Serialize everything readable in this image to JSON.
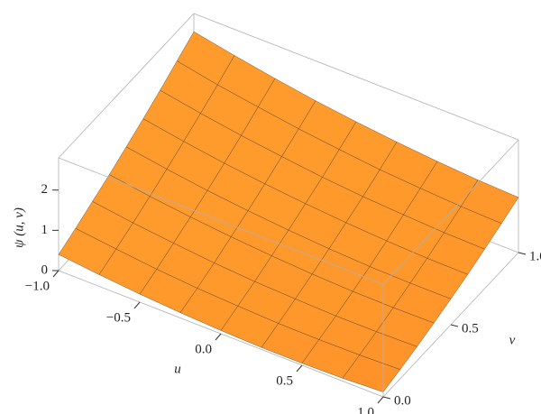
{
  "chart_data": {
    "type": "surface",
    "xlabel": "u",
    "ylabel": "v",
    "zlabel": "ψ (u, v)",
    "x": [
      -1,
      -0.75,
      -0.5,
      -0.25,
      0,
      0.25,
      0.5,
      0.75,
      1
    ],
    "y": [
      0,
      0.125,
      0.25,
      0.375,
      0.5,
      0.625,
      0.75,
      0.875,
      1
    ],
    "z": [
      [
        0.4,
        0.29,
        0.2,
        0.13,
        0.08,
        0.05,
        0.05,
        0.07,
        0.12
      ],
      [
        0.6,
        0.48,
        0.37,
        0.29,
        0.24,
        0.2,
        0.19,
        0.2,
        0.23
      ],
      [
        0.82,
        0.68,
        0.57,
        0.47,
        0.4,
        0.36,
        0.33,
        0.33,
        0.35
      ],
      [
        1.04,
        0.89,
        0.77,
        0.67,
        0.59,
        0.53,
        0.49,
        0.48,
        0.49
      ],
      [
        1.28,
        1.12,
        0.98,
        0.87,
        0.78,
        0.71,
        0.66,
        0.64,
        0.64
      ],
      [
        1.53,
        1.36,
        1.21,
        1.09,
        0.99,
        0.91,
        0.85,
        0.81,
        0.8
      ],
      [
        1.79,
        1.61,
        1.45,
        1.32,
        1.2,
        1.11,
        1.05,
        1.0,
        0.98
      ],
      [
        2.07,
        1.87,
        1.71,
        1.56,
        1.44,
        1.33,
        1.26,
        1.2,
        1.17
      ],
      [
        2.35,
        2.15,
        1.97,
        1.81,
        1.68,
        1.57,
        1.48,
        1.41,
        1.37
      ]
    ],
    "color": "#f28c28",
    "xlim": [
      -1,
      1
    ],
    "ylim": [
      0,
      1
    ],
    "zlim": [
      0,
      2.8
    ],
    "xticks": [
      {
        "value": -1,
        "label": "−1.0"
      },
      {
        "value": -0.5,
        "label": "−0.5"
      },
      {
        "value": 0,
        "label": "0.0"
      },
      0.5,
      {
        "value": 1,
        "label": "1.0"
      }
    ],
    "yticks": [
      {
        "value": 0,
        "label": "0.0"
      },
      0.5,
      {
        "value": 1,
        "label": "1.0"
      }
    ],
    "zticks": [
      0,
      1,
      2
    ]
  }
}
